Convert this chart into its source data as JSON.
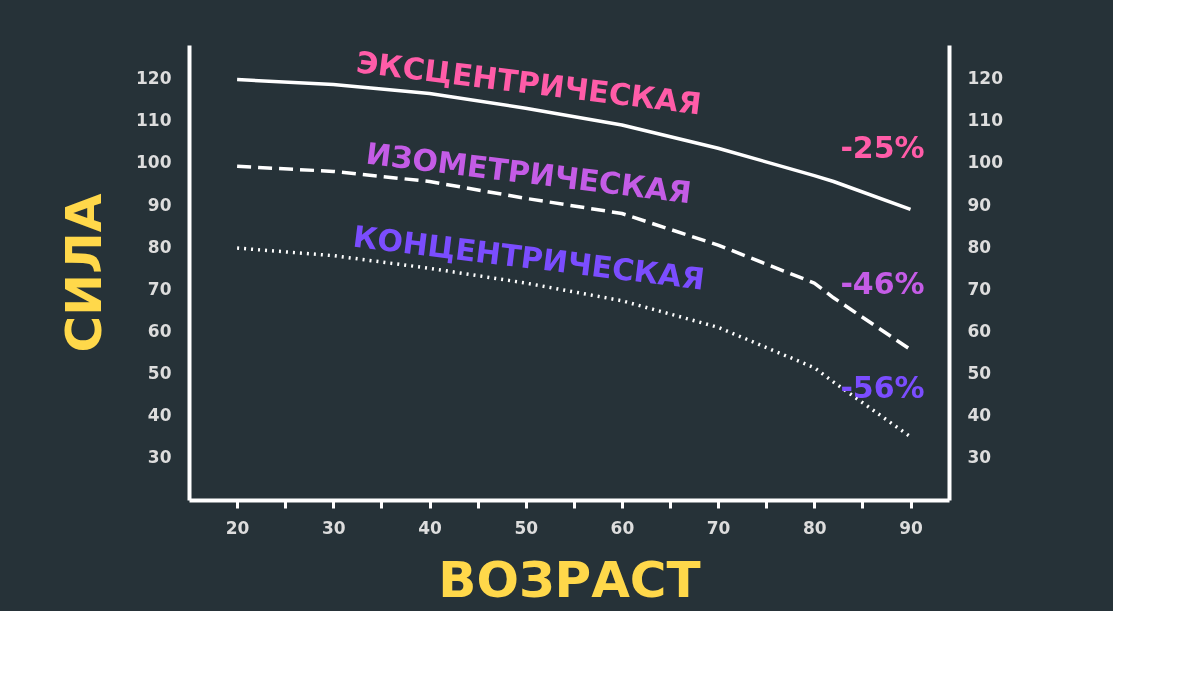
{
  "chart_data": {
    "type": "line",
    "xlabel": "ВОЗРАСТ",
    "ylabel": "СИЛА",
    "x": [
      20,
      30,
      40,
      50,
      60,
      70,
      80,
      82,
      90
    ],
    "series": [
      {
        "name": "ЭКСЦЕНТРИЧЕСКАЯ",
        "color": "#ffffff",
        "line_style": "solid",
        "values": [
          119.8,
          118.6,
          116.5,
          113,
          109,
          103.5,
          97,
          95.6,
          89
        ]
      },
      {
        "name": "ИЗОМЕТРИЧЕСКАЯ",
        "color": "#ffffff",
        "line_style": "dashed",
        "values": [
          99.2,
          98,
          95.6,
          91.6,
          88,
          80.5,
          71.5,
          68,
          55.7
        ]
      },
      {
        "name": "КОНЦЕНТРИЧЕСКАЯ",
        "color": "#ffffff",
        "line_style": "dotted",
        "values": [
          79.8,
          78,
          75,
          71.5,
          67.3,
          61,
          51.4,
          48,
          35
        ]
      }
    ],
    "xlim": [
      15,
      94
    ],
    "xticks": [
      20,
      {
        "value": 25,
        "label": null
      },
      30,
      {
        "value": 35,
        "label": null
      },
      40,
      {
        "value": 45,
        "label": null
      },
      50,
      {
        "value": 55,
        "label": null
      },
      60,
      {
        "value": 65,
        "label": null
      },
      70,
      {
        "value": 75,
        "label": null
      },
      80,
      {
        "value": 85,
        "label": null
      },
      90
    ],
    "ylim": [
      20,
      128
    ],
    "yticks": [
      30,
      40,
      50,
      60,
      70,
      80,
      90,
      100,
      110,
      120
    ],
    "y2lim": [
      20,
      128
    ],
    "y2ticks": [
      30,
      40,
      50,
      60,
      70,
      80,
      90,
      100,
      110,
      120
    ],
    "annotations": [
      "-25%",
      "-46%",
      "-56%"
    ],
    "grid": false,
    "marker": "none"
  }
}
